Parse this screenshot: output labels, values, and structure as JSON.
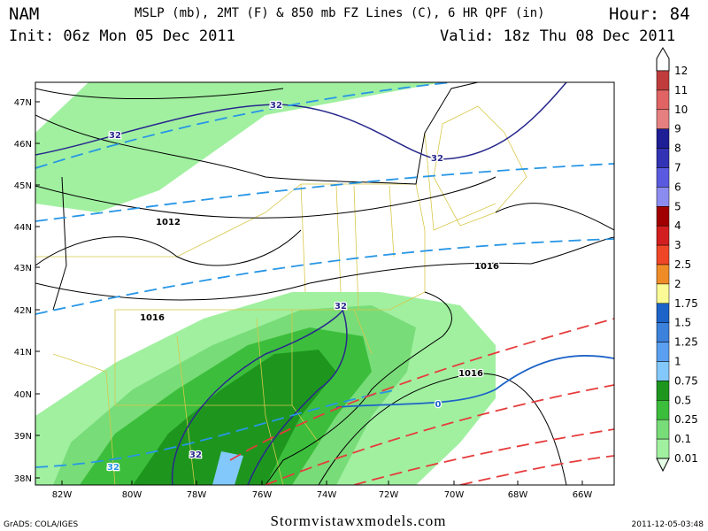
{
  "header": {
    "model": "NAM",
    "title": "MSLP (mb), 2MT (F) & 850 mb FZ Lines (C), 6 HR QPF (in)",
    "hour": "Hour: 84",
    "init": "Init: 06z Mon 05 Dec 2011",
    "valid": "Valid: 18z Thu 08 Dec 2011"
  },
  "map": {
    "lat_labels": [
      "47N",
      "46N",
      "45N",
      "44N",
      "43N",
      "42N",
      "41N",
      "40N",
      "39N",
      "38N"
    ],
    "lon_labels": [
      "82W",
      "80W",
      "78W",
      "76W",
      "74W",
      "72W",
      "70W",
      "68W",
      "66W"
    ],
    "contour_labels": [
      "32",
      "32",
      "32",
      "32",
      "32",
      "1012",
      "1016",
      "1016",
      "1016",
      "0",
      "32"
    ]
  },
  "legend": {
    "entries": [
      {
        "label": "12",
        "color": "#a02828"
      },
      {
        "label": "11",
        "color": "#c03c3c"
      },
      {
        "label": "10",
        "color": "#e06464"
      },
      {
        "label": "9",
        "color": "#e68080"
      },
      {
        "label": "8",
        "color": "#1e1e96"
      },
      {
        "label": "7",
        "color": "#3232b4"
      },
      {
        "label": "6",
        "color": "#5a5ae0"
      },
      {
        "label": "5",
        "color": "#8c8cf0"
      },
      {
        "label": "4",
        "color": "#a00000"
      },
      {
        "label": "3",
        "color": "#d21e1e"
      },
      {
        "label": "2.5",
        "color": "#f04628"
      },
      {
        "label": "2",
        "color": "#f08c28"
      },
      {
        "label": "1.75",
        "color": "#fafa96"
      },
      {
        "label": "1.5",
        "color": "#1e64c8"
      },
      {
        "label": "1.25",
        "color": "#3c82dc"
      },
      {
        "label": "1",
        "color": "#5a9ff0"
      },
      {
        "label": "0.75",
        "color": "#82c8fa"
      },
      {
        "label": "0.5",
        "color": "#1e961e"
      },
      {
        "label": "0.25",
        "color": "#3cbe3c"
      },
      {
        "label": "0.1",
        "color": "#78dc78"
      },
      {
        "label": "0.01",
        "color": "#a0f0a0"
      }
    ]
  },
  "footer": {
    "grads": "GrADS: COLA/IGES",
    "site": "Stormvistawxmodels.com",
    "stamp": "2011-12-05-03:48"
  }
}
